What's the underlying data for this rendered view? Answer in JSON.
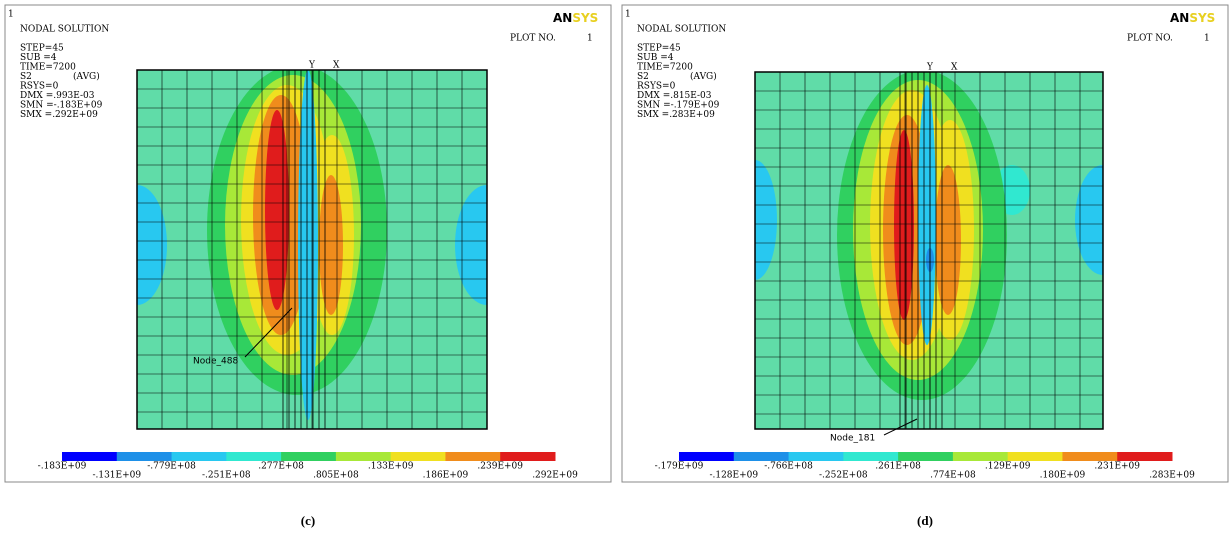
{
  "panels": [
    {
      "header": {
        "number": "1",
        "title": "NODAL SOLUTION",
        "plot_no_label": "PLOT NO.",
        "plot_no": "1",
        "logo_a": "AN",
        "logo_b": "SYS"
      },
      "info": [
        "STEP=45",
        "SUB =4",
        "TIME=7200",
        "S2",
        "RSYS=0",
        "DMX =.993E-03",
        "SMN =-.183E+09",
        "SMX =.292E+09"
      ],
      "avg": "(AVG)",
      "axis": [
        "Y",
        "X"
      ],
      "node": "Node_488",
      "legend": [
        "-.183E+09",
        "-.131E+09",
        "-.779E+08",
        "-.251E+08",
        ".277E+08",
        ".805E+08",
        ".133E+09",
        ".186E+09",
        ".239E+09",
        ".292E+09"
      ],
      "caption": "(c)"
    },
    {
      "header": {
        "number": "1",
        "title": "NODAL SOLUTION",
        "plot_no_label": "PLOT NO.",
        "plot_no": "1",
        "logo_a": "AN",
        "logo_b": "SYS"
      },
      "info": [
        "STEP=45",
        "SUB =4",
        "TIME=7200",
        "S2",
        "RSYS=0",
        "DMX =.815E-03",
        "SMN =-.179E+09",
        "SMX =.283E+09"
      ],
      "avg": "(AVG)",
      "axis": [
        "Y",
        "X"
      ],
      "node": "Node_181",
      "legend": [
        "-.179E+09",
        "-.128E+09",
        "-.766E+08",
        "-.252E+08",
        ".261E+08",
        ".774E+08",
        ".129E+09",
        ".180E+09",
        ".231E+09",
        ".283E+09"
      ],
      "caption": "(d)"
    }
  ]
}
